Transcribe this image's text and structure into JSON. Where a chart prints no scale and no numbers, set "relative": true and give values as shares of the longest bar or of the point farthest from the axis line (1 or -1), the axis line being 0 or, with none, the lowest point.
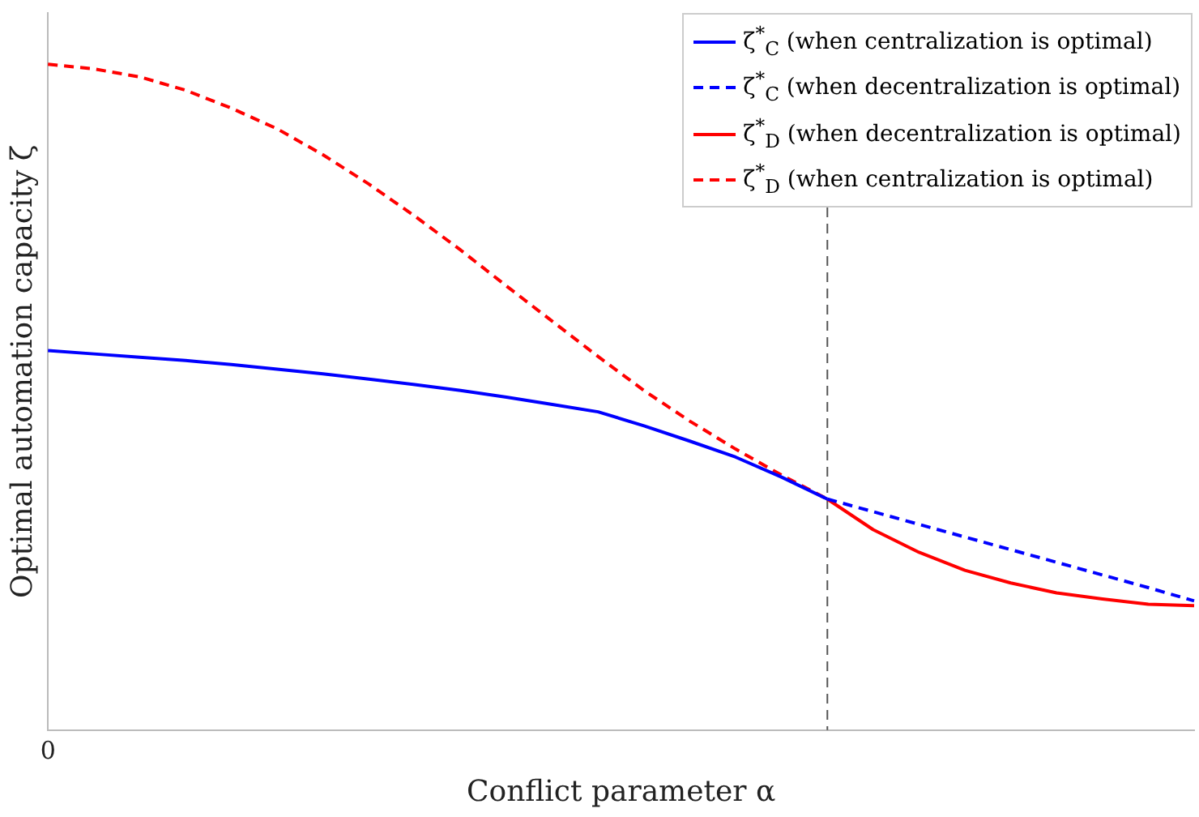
{
  "chart_data": {
    "type": "line",
    "relative": true,
    "xlabel": "Conflict parameter α",
    "ylabel": "Optimal automation capacity ζ",
    "legend": "top right",
    "marker": "none",
    "annotations": [
      "0"
    ],
    "categories": [
      null,
      null,
      null,
      null,
      null,
      null,
      null,
      null,
      null,
      null,
      null,
      null,
      null,
      null,
      null,
      null,
      null,
      null,
      null,
      null,
      null,
      null,
      null,
      null,
      null,
      null
    ],
    "series": [
      {
        "name": "ζ$^{*}$$_{C}$ (when centralization is optimal)",
        "color": "#0000ff",
        "line_style": "solid",
        "values": [
          0.57,
          0.565,
          0.56,
          0.555,
          0.549,
          0.542,
          0.535,
          0.527,
          0.519,
          0.51,
          0.5,
          0.489,
          0.478,
          0.457,
          0.434,
          0.41,
          0.38,
          0.347,
          null,
          null,
          null,
          null,
          null,
          null,
          null,
          null
        ]
      },
      {
        "name": "ζ$^{*}$$_{C}$ (when decentralization is optimal)",
        "color": "#0000ff",
        "line_style": "dashed",
        "values": [
          null,
          null,
          null,
          null,
          null,
          null,
          null,
          null,
          null,
          null,
          null,
          null,
          null,
          null,
          null,
          null,
          null,
          0.347,
          0.328,
          0.309,
          0.29,
          0.271,
          0.252,
          0.233,
          0.214,
          0.194
        ]
      },
      {
        "name": "ζ$^{*}$$_{D}$ (when decentralization is optimal)",
        "color": "#ff0000",
        "line_style": "solid",
        "values": [
          null,
          null,
          null,
          null,
          null,
          null,
          null,
          null,
          null,
          null,
          null,
          null,
          null,
          null,
          null,
          null,
          null,
          0.347,
          0.301,
          0.267,
          0.24,
          0.221,
          0.206,
          0.197,
          0.189,
          0.187
        ]
      },
      {
        "name": "ζ$^{*}$$_{D}$ (when centralization is optimal)",
        "color": "#ff0000",
        "line_style": "dashed",
        "values": [
          1,
          0.993,
          0.981,
          0.961,
          0.934,
          0.903,
          0.864,
          0.82,
          0.772,
          0.721,
          0.667,
          0.614,
          0.561,
          0.51,
          0.464,
          0.422,
          0.383,
          0.347,
          null,
          null,
          null,
          null,
          null,
          null,
          null,
          null
        ]
      }
    ]
  }
}
